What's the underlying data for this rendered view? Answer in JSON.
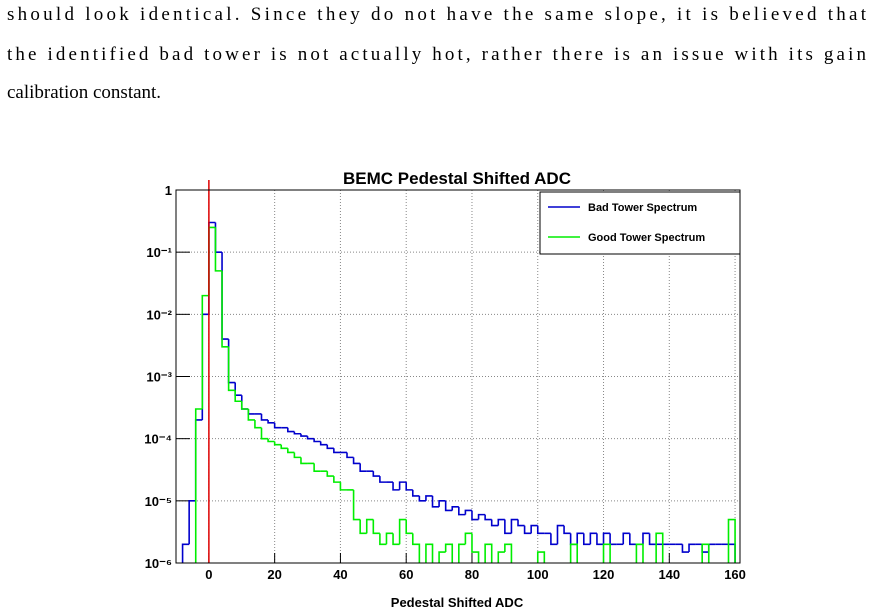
{
  "paragraph": {
    "lines": [
      "should look identical.  Since they do not have the same slope, it is believed that",
      "the identified bad tower is not actually hot, rather there is an issue with its gain",
      "calibration constant."
    ]
  },
  "chart_data": {
    "type": "histogram",
    "title": "BEMC Pedestal Shifted ADC",
    "x_label": "Pedestal Shifted ADC",
    "bins": [
      -8,
      -6,
      -4,
      -2,
      0,
      2,
      4,
      6,
      8,
      10,
      12,
      14,
      16,
      18,
      20,
      22,
      24,
      26,
      28,
      30,
      32,
      34,
      36,
      38,
      40,
      42,
      44,
      46,
      48,
      50,
      52,
      54,
      56,
      58,
      60,
      62,
      64,
      66,
      68,
      70,
      72,
      74,
      76,
      78,
      80,
      82,
      84,
      86,
      88,
      90,
      92,
      94,
      96,
      98,
      100,
      102,
      104,
      106,
      108,
      110,
      112,
      114,
      116,
      118,
      120,
      122,
      124,
      126,
      128,
      130,
      132,
      134,
      136,
      138,
      140,
      142,
      144,
      146,
      148,
      150,
      152,
      154,
      156,
      158,
      160
    ],
    "series": [
      {
        "name": "Bad Tower Spectrum",
        "color": "#0000cc",
        "values": [
          2e-06,
          1e-05,
          0.0002,
          0.01,
          0.3,
          0.1,
          0.004,
          0.0008,
          0.0005,
          0.0003,
          0.00025,
          0.00025,
          0.0002,
          0.00018,
          0.00015,
          0.00015,
          0.00013,
          0.00012,
          0.00011,
          0.0001,
          9e-05,
          8e-05,
          7e-05,
          6e-05,
          6e-05,
          5e-05,
          4e-05,
          3e-05,
          3e-05,
          2.5e-05,
          2e-05,
          2e-05,
          1.5e-05,
          2e-05,
          1.5e-05,
          1.2e-05,
          1e-05,
          1.2e-05,
          8e-06,
          1e-05,
          7e-06,
          8e-06,
          6e-06,
          7e-06,
          5e-06,
          6e-06,
          5e-06,
          4e-06,
          5e-06,
          3e-06,
          5e-06,
          4e-06,
          3e-06,
          4e-06,
          3e-06,
          3e-06,
          2e-06,
          4e-06,
          3e-06,
          2e-06,
          3e-06,
          2e-06,
          3e-06,
          2e-06,
          3e-06,
          2e-06,
          2e-06,
          3e-06,
          2e-06,
          2e-06,
          3e-06,
          2e-06,
          2e-06,
          2e-06,
          2e-06,
          2e-06,
          1.5e-06,
          2e-06,
          2e-06,
          1.5e-06,
          2e-06,
          2e-06,
          2e-06,
          2e-06
        ]
      },
      {
        "name": "Good Tower Spectrum",
        "color": "#00ee00",
        "values": [
          null,
          null,
          0.0003,
          0.02,
          0.25,
          0.05,
          0.003,
          0.0006,
          0.0004,
          0.0003,
          0.0002,
          0.00015,
          0.0001,
          9e-05,
          8e-05,
          7e-05,
          6e-05,
          5e-05,
          4e-05,
          4e-05,
          3e-05,
          3e-05,
          2.5e-05,
          2e-05,
          1.5e-05,
          1.5e-05,
          5e-06,
          3e-06,
          5e-06,
          3e-06,
          2e-06,
          3e-06,
          2e-06,
          5e-06,
          3e-06,
          2e-06,
          null,
          2e-06,
          null,
          1.5e-06,
          2e-06,
          null,
          2e-06,
          3e-06,
          1.5e-06,
          null,
          2e-06,
          null,
          1.5e-06,
          2e-06,
          null,
          null,
          null,
          null,
          1.5e-06,
          null,
          null,
          null,
          null,
          2e-06,
          null,
          null,
          null,
          null,
          2e-06,
          null,
          null,
          null,
          null,
          2e-06,
          null,
          null,
          3e-06,
          null,
          null,
          null,
          null,
          null,
          null,
          2e-06,
          null,
          null,
          null,
          5e-06
        ]
      }
    ],
    "xlim": [
      -10,
      161.5
    ],
    "ylim": [
      1e-06,
      1
    ],
    "xticks": [
      0,
      20,
      40,
      60,
      80,
      100,
      120,
      140,
      160
    ],
    "yticks": [
      1,
      {
        "value": 0.1,
        "label": "10⁻¹"
      },
      {
        "value": 0.01,
        "label": "10⁻²"
      },
      {
        "value": 0.001,
        "label": "10⁻³"
      },
      {
        "value": 0.0001,
        "label": "10⁻⁴"
      },
      {
        "value": 1e-05,
        "label": "10⁻⁵"
      },
      {
        "value": 1e-06,
        "label": "10⁻⁶"
      }
    ],
    "log_y": true,
    "grid": true,
    "legend": "upper right",
    "marker_x": 0,
    "marker_color": "#dd0000"
  }
}
